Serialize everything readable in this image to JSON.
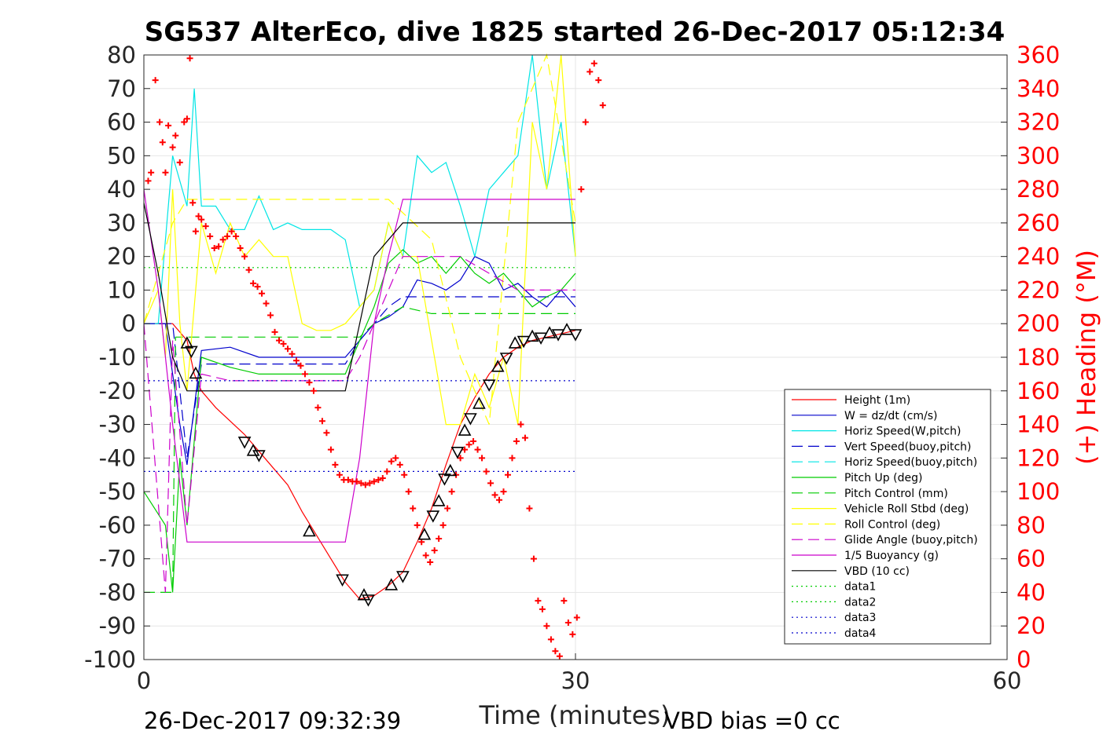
{
  "chart_data": {
    "type": "line",
    "title": "SG537 AlterEco, dive 1825 started 26-Dec-2017 05:12:34",
    "xlabel": "Time (minutes)",
    "ylabel_right": "(+) Heading (°M)",
    "xlim": [
      0,
      60
    ],
    "ylim_left": [
      -100,
      80
    ],
    "ylim_right": [
      0,
      360
    ],
    "x_ticks": [
      "0",
      "30",
      "60"
    ],
    "y_ticks_left": [
      "80",
      "70",
      "60",
      "50",
      "40",
      "30",
      "20",
      "10",
      "0",
      "-10",
      "-20",
      "-30",
      "-40",
      "-50",
      "-60",
      "-70",
      "-80",
      "-90",
      "-100"
    ],
    "y_ticks_right": [
      "360",
      "340",
      "320",
      "300",
      "280",
      "260",
      "240",
      "220",
      "200",
      "180",
      "160",
      "140",
      "120",
      "100",
      "80",
      "60",
      "40",
      "20",
      "0"
    ],
    "grid": true,
    "legend_position": "bottom-right",
    "footer_left": "26-Dec-2017 09:32:39",
    "footer_right": "VBD bias =0 cc",
    "legend": [
      {
        "label": "Height (1m)",
        "color": "#ff0000",
        "style": "solid"
      },
      {
        "label": "W = dz/dt (cm/s)",
        "color": "#0000cc",
        "style": "solid"
      },
      {
        "label": "Horiz Speed(W,pitch)",
        "color": "#00e5e5",
        "style": "solid"
      },
      {
        "label": "Vert Speed(buoy,pitch)",
        "color": "#0000cc",
        "style": "dashed"
      },
      {
        "label": "Horiz Speed(buoy,pitch)",
        "color": "#00e5e5",
        "style": "dashed"
      },
      {
        "label": "Pitch Up (deg)",
        "color": "#00cc00",
        "style": "solid"
      },
      {
        "label": "Pitch Control (mm)",
        "color": "#00cc00",
        "style": "dashed"
      },
      {
        "label": "Vehicle Roll Stbd (deg)",
        "color": "#ffff00",
        "style": "solid"
      },
      {
        "label": "Roll Control (deg)",
        "color": "#ffff00",
        "style": "dashed"
      },
      {
        "label": "Glide Angle (buoy,pitch)",
        "color": "#cc00cc",
        "style": "dashed"
      },
      {
        "label": "1/5 Buoyancy (g)",
        "color": "#cc00cc",
        "style": "solid"
      },
      {
        "label": "VBD (10 cc)",
        "color": "#000000",
        "style": "solid"
      },
      {
        "label": "data1",
        "color": "#00cc00",
        "style": "dotted"
      },
      {
        "label": "data2",
        "color": "#00cc00",
        "style": "dotted"
      },
      {
        "label": "data3",
        "color": "#0000cc",
        "style": "dotted"
      },
      {
        "label": "data4",
        "color": "#0000cc",
        "style": "dotted"
      }
    ],
    "series": [
      {
        "name": "Height (1m)",
        "axis": "left",
        "x": [
          0,
          2,
          3,
          3.5,
          4,
          5,
          7,
          8,
          9,
          10,
          11,
          12,
          13,
          14,
          15,
          16,
          17,
          18,
          19,
          20,
          21,
          22,
          23,
          24,
          25,
          26,
          27,
          28,
          29,
          30
        ],
        "y": [
          0,
          0,
          -5,
          -15,
          -20,
          -25,
          -33,
          -38,
          -43,
          -48,
          -56,
          -63,
          -70,
          -77,
          -82,
          -81,
          -78,
          -74,
          -65,
          -55,
          -42,
          -30,
          -22,
          -15,
          -10,
          -7,
          -5,
          -4,
          -3,
          -2
        ]
      },
      {
        "name": "W = dz/dt (cm/s)",
        "axis": "left",
        "x": [
          0,
          1.5,
          2.5,
          3,
          4,
          6,
          8,
          10,
          12,
          14,
          15,
          16,
          17,
          18,
          19,
          20,
          21,
          22,
          23,
          24,
          25,
          26,
          27,
          28,
          29,
          30
        ],
        "y": [
          0,
          0,
          -30,
          -42,
          -8,
          -7,
          -10,
          -10,
          -10,
          -10,
          -5,
          0,
          2,
          5,
          13,
          12,
          10,
          13,
          20,
          18,
          10,
          12,
          8,
          5,
          10,
          5
        ]
      },
      {
        "name": "Horiz Speed(W,pitch)",
        "axis": "left",
        "x": [
          0,
          1,
          2,
          3,
          3.5,
          4,
          5,
          6,
          7,
          8,
          9,
          10,
          11,
          12,
          13,
          14,
          15,
          16,
          17,
          18,
          19,
          20,
          21,
          22,
          23,
          24,
          25,
          26,
          27,
          28,
          29,
          30
        ],
        "y": [
          0,
          0,
          50,
          35,
          70,
          35,
          35,
          28,
          28,
          38,
          28,
          30,
          28,
          28,
          28,
          25,
          5,
          10,
          30,
          20,
          50,
          45,
          48,
          35,
          20,
          40,
          45,
          50,
          80,
          40,
          60,
          20
        ]
      },
      {
        "name": "Vert Speed(buoy,pitch)",
        "axis": "left",
        "x": [
          0,
          2,
          3,
          4,
          6,
          8,
          10,
          12,
          14,
          15,
          16,
          17,
          18,
          19,
          20,
          21,
          22,
          23,
          24,
          25,
          26,
          27,
          28,
          29,
          30
        ],
        "y": [
          0,
          0,
          -40,
          -12,
          -12,
          -12,
          -12,
          -12,
          -12,
          -5,
          0,
          5,
          8,
          8,
          8,
          8,
          8,
          8,
          8,
          8,
          8,
          8,
          8,
          8,
          8
        ]
      },
      {
        "name": "Pitch Up (deg)",
        "axis": "left",
        "x": [
          0,
          1.5,
          2,
          2.5,
          3,
          4,
          6,
          8,
          10,
          12,
          14,
          15,
          16,
          17,
          18,
          19,
          20,
          21,
          22,
          23,
          24,
          25,
          26,
          27,
          28,
          29,
          30
        ],
        "y": [
          -50,
          -60,
          -80,
          -40,
          -60,
          -10,
          -13,
          -15,
          -15,
          -15,
          -15,
          -5,
          5,
          18,
          22,
          18,
          20,
          15,
          20,
          15,
          12,
          15,
          10,
          5,
          8,
          10,
          15
        ]
      },
      {
        "name": "Pitch Control (mm)",
        "axis": "left",
        "x": [
          0,
          2,
          2.2,
          3,
          4,
          15,
          16,
          18,
          20,
          30
        ],
        "y": [
          -80,
          -80,
          -4,
          -4,
          -4,
          -4,
          0,
          5,
          3,
          3
        ]
      },
      {
        "name": "Vehicle Roll Stbd (deg)",
        "axis": "left",
        "x": [
          0,
          1,
          1.5,
          2,
          2.5,
          3,
          4,
          5,
          6,
          7,
          8,
          9,
          10,
          11,
          12,
          13,
          14,
          15,
          16,
          17,
          18,
          19,
          20,
          21,
          22,
          23,
          24,
          25,
          26,
          27,
          28,
          29,
          30
        ],
        "y": [
          0,
          10,
          -10,
          40,
          0,
          -20,
          30,
          15,
          30,
          20,
          25,
          20,
          20,
          0,
          -2,
          -2,
          0,
          5,
          10,
          30,
          20,
          20,
          -5,
          -30,
          -30,
          -15,
          -25,
          -10,
          -30,
          60,
          40,
          80,
          20
        ]
      },
      {
        "name": "Roll Control (deg)",
        "axis": "left",
        "x": [
          0,
          2,
          3,
          4,
          6,
          8,
          10,
          12,
          16,
          17,
          20,
          22,
          24,
          26,
          28,
          30
        ],
        "y": [
          0,
          30,
          37,
          37,
          37,
          37,
          37,
          37,
          37,
          37,
          25,
          -10,
          -30,
          60,
          80,
          30
        ]
      },
      {
        "name": "Glide Angle (buoy,pitch)",
        "axis": "left",
        "x": [
          0,
          1.5,
          2,
          3,
          4,
          6,
          8,
          10,
          12,
          14,
          15,
          16,
          17,
          18,
          19,
          20,
          22,
          24,
          26,
          28,
          30
        ],
        "y": [
          0,
          -80,
          -5,
          -60,
          -15,
          -17,
          -17,
          -17,
          -17,
          -17,
          -10,
          0,
          10,
          20,
          20,
          20,
          20,
          15,
          10,
          10,
          10
        ]
      },
      {
        "name": "1/5 Buoyancy (g)",
        "axis": "left",
        "x": [
          0,
          1,
          2,
          3,
          3.5,
          4,
          8,
          12,
          14,
          15,
          16,
          17,
          18,
          20,
          25,
          30
        ],
        "y": [
          40,
          10,
          -30,
          -65,
          -65,
          -65,
          -65,
          -65,
          -65,
          -40,
          0,
          20,
          37,
          37,
          37,
          37
        ]
      },
      {
        "name": "VBD (10 cc)",
        "axis": "left",
        "x": [
          0,
          1,
          2,
          3,
          4,
          8,
          12,
          14,
          15,
          16,
          17,
          18,
          19,
          20,
          25,
          30
        ],
        "y": [
          36,
          15,
          -10,
          -20,
          -20,
          -20,
          -20,
          -20,
          0,
          20,
          25,
          30,
          30,
          30,
          30,
          30
        ]
      },
      {
        "name": "data1",
        "axis": "left",
        "x": [
          0,
          30
        ],
        "y": [
          16.7,
          16.7
        ]
      },
      {
        "name": "data3",
        "axis": "left",
        "x": [
          0,
          30
        ],
        "y": [
          -17,
          -17
        ]
      },
      {
        "name": "data4",
        "axis": "left",
        "x": [
          0,
          30
        ],
        "y": [
          -44,
          -44
        ]
      }
    ],
    "heading_points": [
      [
        0.3,
        285
      ],
      [
        0.5,
        290
      ],
      [
        0.8,
        345
      ],
      [
        1.1,
        320
      ],
      [
        1.3,
        308
      ],
      [
        1.5,
        290
      ],
      [
        1.7,
        318
      ],
      [
        2.0,
        305
      ],
      [
        2.2,
        312
      ],
      [
        2.5,
        296
      ],
      [
        2.8,
        320
      ],
      [
        3.0,
        322
      ],
      [
        3.2,
        358
      ],
      [
        3.4,
        272
      ],
      [
        3.6,
        255
      ],
      [
        3.8,
        264
      ],
      [
        4.0,
        262
      ],
      [
        4.3,
        258
      ],
      [
        4.6,
        252
      ],
      [
        4.9,
        245
      ],
      [
        5.2,
        246
      ],
      [
        5.5,
        250
      ],
      [
        5.8,
        252
      ],
      [
        6.1,
        255
      ],
      [
        6.4,
        252
      ],
      [
        6.7,
        245
      ],
      [
        7.0,
        240
      ],
      [
        7.3,
        232
      ],
      [
        7.6,
        224
      ],
      [
        7.9,
        222
      ],
      [
        8.2,
        218
      ],
      [
        8.5,
        212
      ],
      [
        8.8,
        205
      ],
      [
        9.1,
        195
      ],
      [
        9.4,
        190
      ],
      [
        9.7,
        188
      ],
      [
        10.0,
        185
      ],
      [
        10.3,
        182
      ],
      [
        10.6,
        178
      ],
      [
        10.9,
        175
      ],
      [
        11.2,
        170
      ],
      [
        11.5,
        165
      ],
      [
        11.8,
        160
      ],
      [
        12.1,
        150
      ],
      [
        12.4,
        142
      ],
      [
        12.7,
        135
      ],
      [
        13.0,
        125
      ],
      [
        13.3,
        116
      ],
      [
        13.6,
        110
      ],
      [
        13.9,
        107
      ],
      [
        14.2,
        107
      ],
      [
        14.5,
        106
      ],
      [
        14.8,
        106
      ],
      [
        15.1,
        105
      ],
      [
        15.4,
        104
      ],
      [
        15.7,
        105
      ],
      [
        16.0,
        106
      ],
      [
        16.3,
        107
      ],
      [
        16.6,
        108
      ],
      [
        16.9,
        112
      ],
      [
        17.2,
        118
      ],
      [
        17.5,
        120
      ],
      [
        17.8,
        116
      ],
      [
        18.1,
        110
      ],
      [
        18.4,
        100
      ],
      [
        18.7,
        90
      ],
      [
        19.0,
        80
      ],
      [
        19.3,
        70
      ],
      [
        19.6,
        62
      ],
      [
        19.9,
        58
      ],
      [
        20.2,
        65
      ],
      [
        20.5,
        72
      ],
      [
        20.8,
        80
      ],
      [
        21.1,
        90
      ],
      [
        21.4,
        100
      ],
      [
        21.7,
        110
      ],
      [
        22.0,
        120
      ],
      [
        22.3,
        125
      ],
      [
        22.6,
        128
      ],
      [
        22.9,
        130
      ],
      [
        23.2,
        125
      ],
      [
        23.5,
        120
      ],
      [
        23.8,
        112
      ],
      [
        24.1,
        105
      ],
      [
        24.4,
        98
      ],
      [
        24.7,
        95
      ],
      [
        25.0,
        100
      ],
      [
        25.3,
        110
      ],
      [
        25.6,
        120
      ],
      [
        25.9,
        130
      ],
      [
        26.2,
        140
      ],
      [
        26.5,
        132
      ],
      [
        26.8,
        90
      ],
      [
        27.1,
        60
      ],
      [
        27.4,
        35
      ],
      [
        27.7,
        30
      ],
      [
        28.0,
        20
      ],
      [
        28.3,
        12
      ],
      [
        28.6,
        5
      ],
      [
        28.9,
        2
      ],
      [
        29.2,
        35
      ],
      [
        29.5,
        22
      ],
      [
        29.8,
        15
      ],
      [
        30.1,
        25
      ],
      [
        30.4,
        280
      ],
      [
        30.7,
        320
      ],
      [
        31.0,
        350
      ],
      [
        31.3,
        355
      ],
      [
        31.6,
        345
      ],
      [
        31.9,
        330
      ]
    ],
    "triangle_markers": [
      [
        3.0,
        -6
      ],
      [
        3.3,
        -8
      ],
      [
        3.6,
        -15
      ],
      [
        7.0,
        -35
      ],
      [
        7.6,
        -38
      ],
      [
        8.0,
        -39
      ],
      [
        11.5,
        -62
      ],
      [
        13.8,
        -76
      ],
      [
        15.3,
        -81
      ],
      [
        15.6,
        -82
      ],
      [
        17.2,
        -78
      ],
      [
        18.0,
        -75
      ],
      [
        19.5,
        -63
      ],
      [
        20.1,
        -57
      ],
      [
        20.5,
        -53
      ],
      [
        20.9,
        -46
      ],
      [
        21.3,
        -44
      ],
      [
        21.8,
        -38
      ],
      [
        22.3,
        -32
      ],
      [
        22.7,
        -28
      ],
      [
        23.3,
        -24
      ],
      [
        24.0,
        -18
      ],
      [
        24.6,
        -13
      ],
      [
        25.2,
        -10
      ],
      [
        25.8,
        -6
      ],
      [
        26.4,
        -5
      ],
      [
        27.0,
        -4
      ],
      [
        27.6,
        -4
      ],
      [
        28.2,
        -3
      ],
      [
        28.8,
        -3
      ],
      [
        29.4,
        -2
      ],
      [
        30.0,
        -3
      ]
    ]
  }
}
